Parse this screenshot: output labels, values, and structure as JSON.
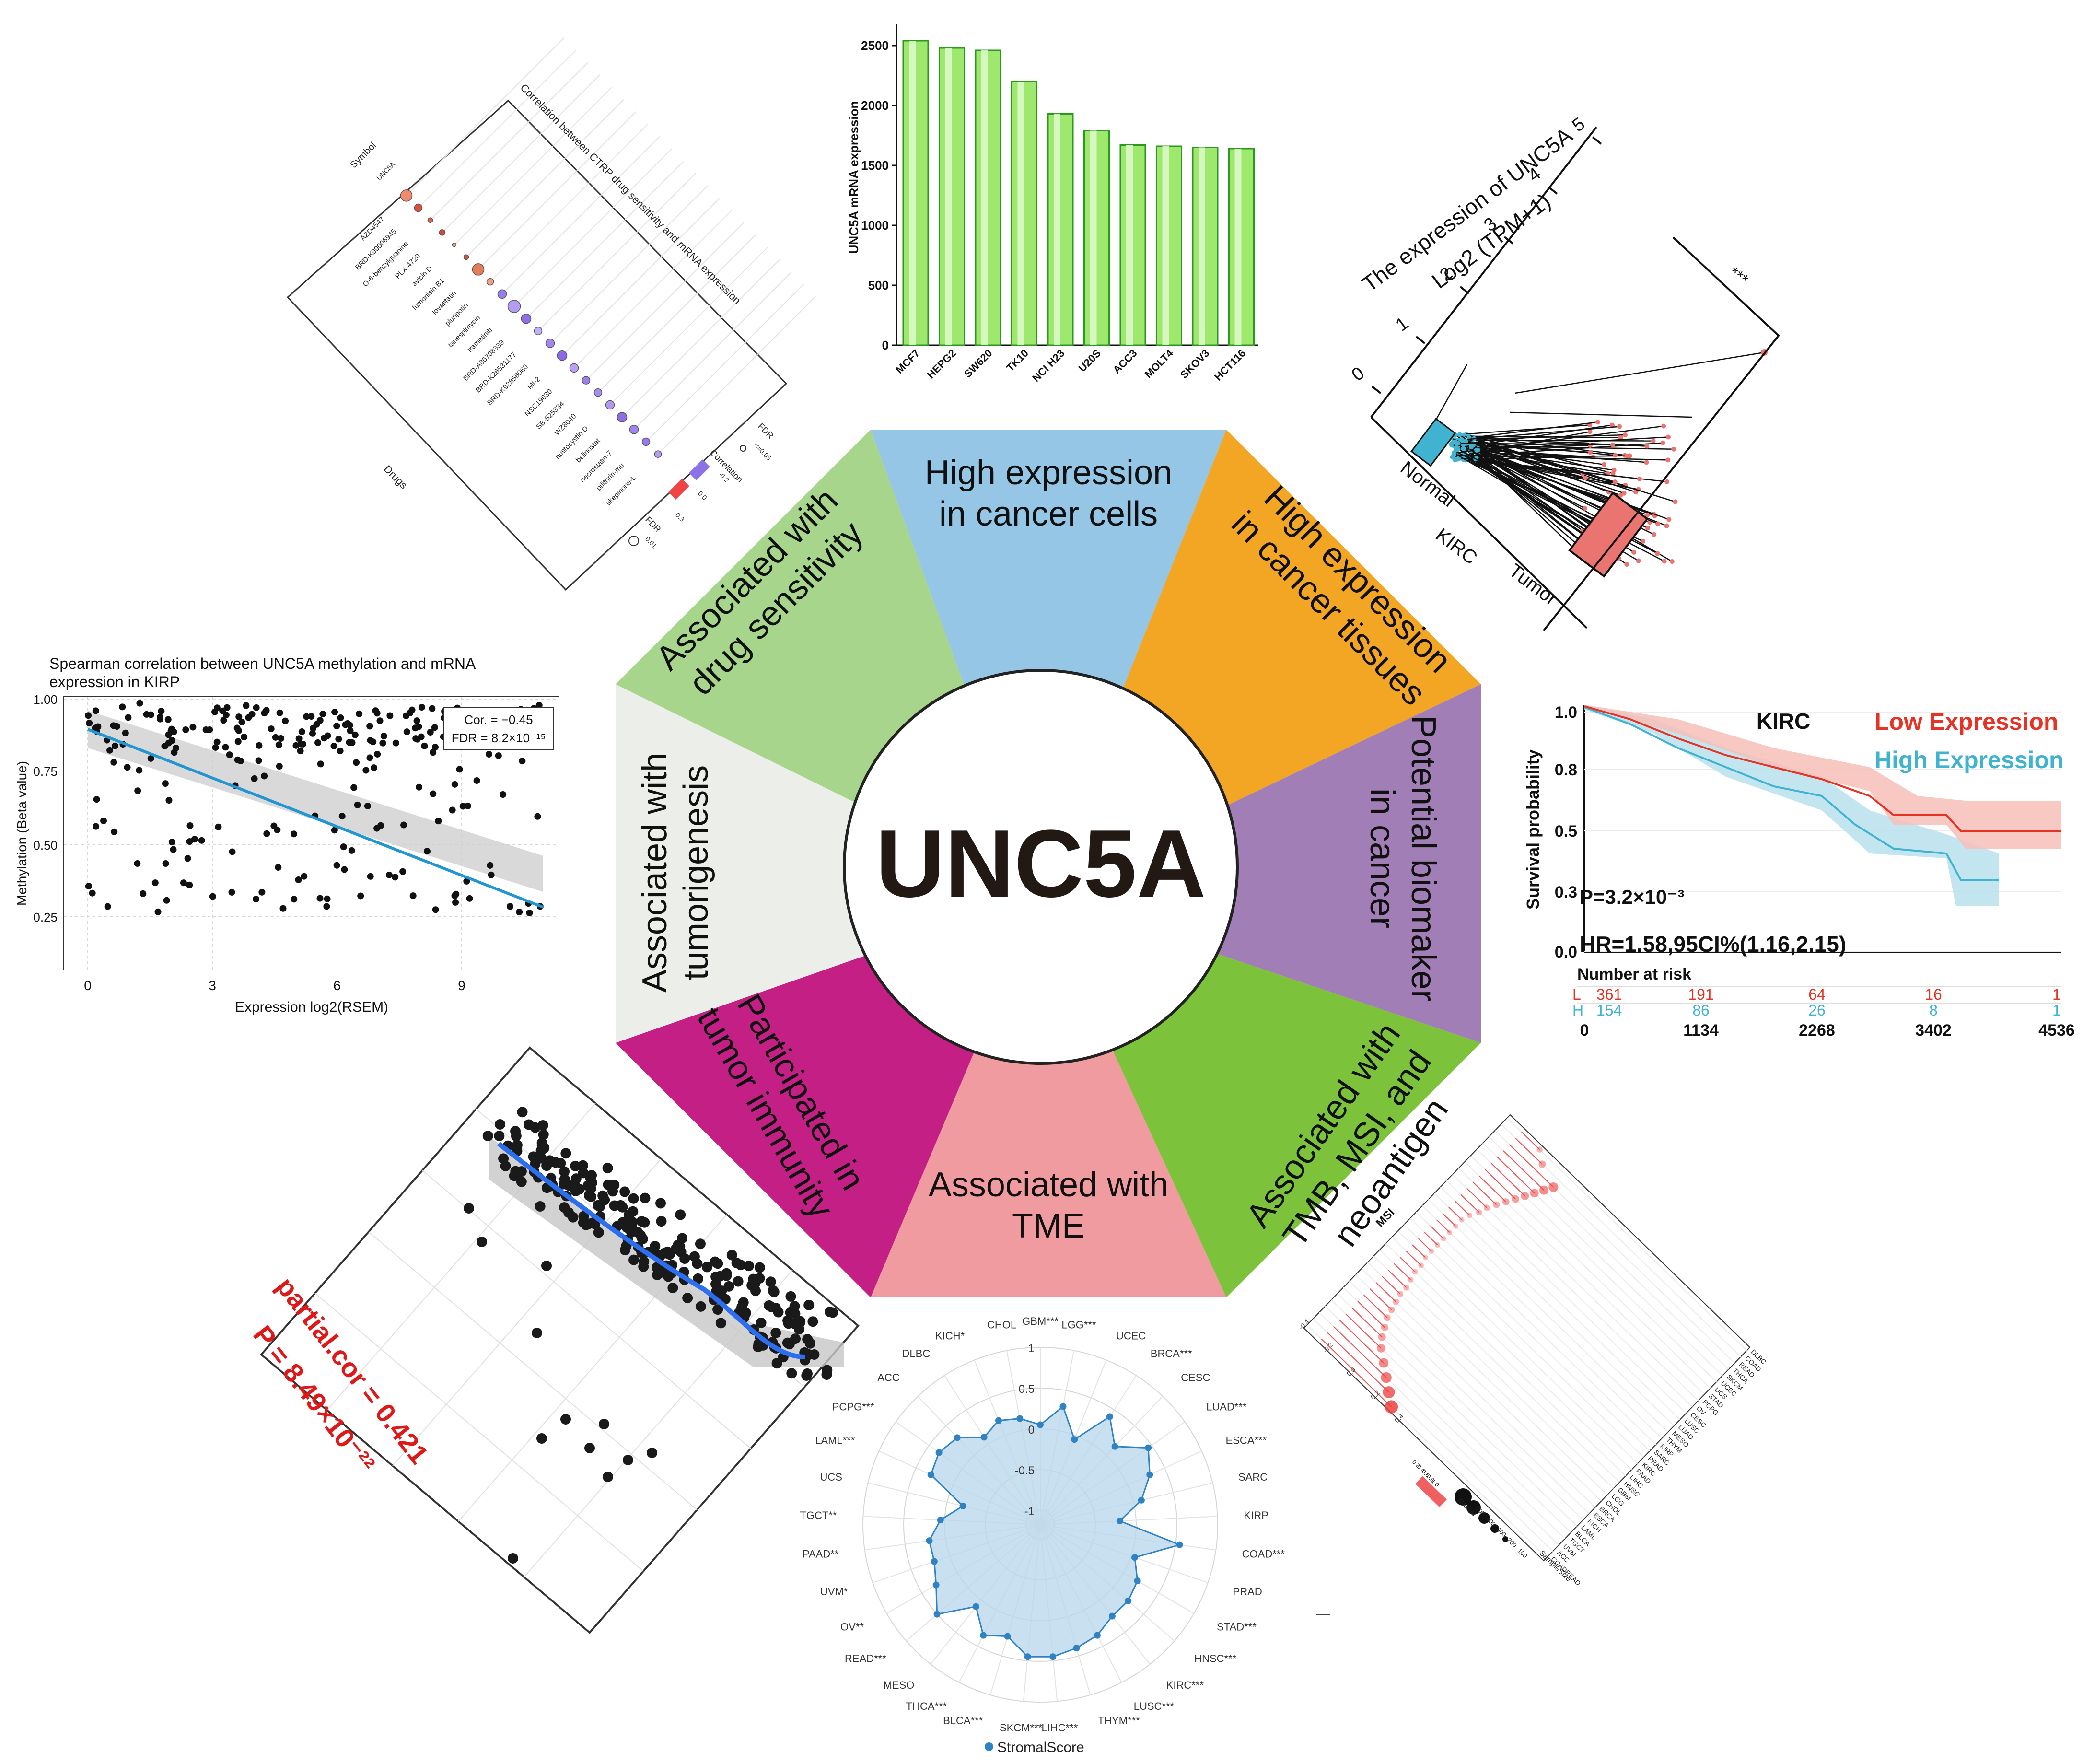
{
  "center": {
    "title": "UNC5A"
  },
  "segments": {
    "top": [
      "High expression",
      "in cancer cells"
    ],
    "top_right": [
      "High expression",
      "in cancer tissues"
    ],
    "right": [
      "Potential biomaker",
      "in cancer"
    ],
    "bottom_right": [
      "Associated with",
      "TMB, MSI, and",
      "neoantigen"
    ],
    "bottom": [
      "Associated with",
      "TME"
    ],
    "bottom_left": [
      "Participated in",
      "tumor immunity"
    ],
    "left": [
      "Associated with",
      "tumorigenesis"
    ],
    "top_left": [
      "Associated with",
      "drug sensitivity"
    ]
  },
  "colors": {
    "top": "#96c6e6",
    "top_right": "#f2a623",
    "right": "#a17fb6",
    "bottom_right": "#7cc23a",
    "bottom": "#ef9b9f",
    "bottom_left": "#c41f84",
    "left": "#eceeea",
    "top_left": "#a8d58c"
  },
  "bar_panel": {
    "chart_data": {
      "type": "bar",
      "ylabel": "UNC5A mRNA expression",
      "categories": [
        "MCF7",
        "HEPG2",
        "SW620",
        "TK10",
        "NCI H23",
        "U20S",
        "ACC3",
        "MOLT4",
        "SKOV3",
        "HCT116"
      ],
      "values": [
        2540,
        2480,
        2460,
        2200,
        1930,
        1790,
        1670,
        1660,
        1650,
        1640
      ],
      "yticks": [
        "0",
        "500",
        "1000",
        "1500",
        "2000",
        "2500"
      ],
      "ylim": [
        0,
        2800
      ]
    }
  },
  "drug_panel": {
    "title": "Correlation between CTRP drug sensitivity and mRNA expression",
    "symbol_label": "Symbol",
    "symbol": "UNC5A",
    "drugs_label": "Drugs",
    "fdr_label": "FDR",
    "fdr_value": "<=0.05",
    "corr_label": "Correlation",
    "corr_ticks": [
      "-0.2",
      "0.0",
      "0.3"
    ],
    "fdr2_label": "FDR",
    "fdr2_value": "0.01",
    "drugs": [
      "AZD4547",
      "BRD-K99006945",
      "O-6-benzylguanine",
      "PLX-4720",
      "avicin D",
      "fumonisin B1",
      "lovastatin",
      "pluripotin",
      "tanespimycin",
      "trametinib",
      "BRD-A86708339",
      "BRD-K26531177",
      "BRD-K92856060",
      "MI-2",
      "NSC19630",
      "SB-525334",
      "WZ8040",
      "austocystin D",
      "belinostat",
      "necrostatin-7",
      "pifithrin-mu",
      "skepinone-L"
    ]
  },
  "box_panel": {
    "ylabel_line1": "The expression of UNC5A",
    "ylabel_line2": "Log2 (TPM+1)",
    "yticks": [
      "0",
      "1",
      "2",
      "3",
      "4",
      "5"
    ],
    "categories": [
      "Normal",
      "Tumor"
    ],
    "cancer": "KIRC",
    "sig": "***"
  },
  "scatter_panel": {
    "title_line1": "Spearman correlation between UNC5A methylation and mRNA",
    "title_line2": "expression in KIRP",
    "cor_text": "Cor. = −0.45",
    "fdr_text": "FDR = 8.2×10⁻¹⁵",
    "xlabel": "Expression log2(RSEM)",
    "ylabel": "Methylation (Beta value)",
    "xticks": [
      "0",
      "3",
      "6",
      "9"
    ],
    "yticks": [
      "1.00",
      "0.75",
      "0.50",
      "0.25"
    ]
  },
  "km_panel": {
    "ylabel": "Survival probability",
    "cancer": "KIRC",
    "low_label": "Low Expression",
    "high_label": "High Expression",
    "p_text": "P=3.2×10⁻³",
    "hr_text": "HR=1.58,95CI%(1.16,2.15)",
    "yticks": [
      "1.0",
      "0.8",
      "0.5",
      "0.3",
      "0.0"
    ],
    "risk_title": "Number at risk",
    "risk_low": [
      "L",
      "361",
      "191",
      "64",
      "16",
      "1"
    ],
    "risk_high": [
      "H",
      "154",
      "86",
      "26",
      "8",
      "1"
    ],
    "xticks": [
      "0",
      "1134",
      "2268",
      "3402",
      "4536"
    ],
    "low_color": "#e83223",
    "high_color": "#3fb3cf"
  },
  "partial_panel": {
    "cor_text": "partial.cor = 0.421",
    "p_text": "P = 8.49×10⁻²²"
  },
  "msi_panel": {
    "title": "MSI",
    "ticks": [
      "-0.4",
      "-0.2",
      "0.0",
      "0.2",
      "0.4"
    ],
    "cancers": [
      "COADREAD",
      "ACC",
      "UVM",
      "TGCT",
      "BLCA",
      "LAML",
      "KICH",
      "ESCA",
      "BRCA",
      "CHOL",
      "LGG",
      "GBM",
      "HNSC",
      "LIHC",
      "PAAD",
      "KIRC",
      "PRAD",
      "SARC",
      "KIRP",
      "THYM",
      "MESO",
      "LUAD",
      "LUSC",
      "CESC",
      "OV",
      "PCPG",
      "STAD",
      "UCS",
      "UCEC",
      "SKCM",
      "THCA",
      "READ",
      "COAD",
      "DLBC"
    ],
    "legend_title": "SampleSize",
    "legend_sizes": [
      "100",
      "200",
      "300",
      "400",
      "500"
    ],
    "pvalue_title": "pvalue",
    "pvalue_ticks": [
      "0.2",
      "0.4",
      "0.6",
      "0.8",
      "1.0"
    ],
    "dash": "—"
  },
  "radar_panel": {
    "legend": "StromalScore",
    "rings": [
      "1",
      "0.5",
      "0",
      "-0.5",
      "-1"
    ],
    "labels": [
      "GBM***",
      "LGG***",
      "UCEC",
      "BRCA***",
      "CESC",
      "LUAD***",
      "ESCA***",
      "SARC",
      "KIRP",
      "COAD***",
      "PRAD",
      "STAD***",
      "HNSC***",
      "KIRC***",
      "LUSC***",
      "THYM***",
      "LIHC***",
      "SKCM***",
      "BLCA***",
      "THCA***",
      "MESO",
      "READ***",
      "OV**",
      "UVM*",
      "PAAD**",
      "TGCT**",
      "UCS",
      "LAML***",
      "PCPG***",
      "ACC",
      "DLBC",
      "KICH*",
      "CHOL"
    ],
    "values": [
      0.05,
      0.3,
      -0.05,
      0.4,
      0.15,
      0.45,
      0.3,
      0.1,
      -0.2,
      0.55,
      0.05,
      0.2,
      0.25,
      0.25,
      0.35,
      0.4,
      0.45,
      0.45,
      0.25,
      0.35,
      0.1,
      0.5,
      0.3,
      0.2,
      0.2,
      0.05,
      -0.2,
      0.3,
      0.35,
      0.3,
      0.1,
      0.2,
      0.15
    ]
  }
}
